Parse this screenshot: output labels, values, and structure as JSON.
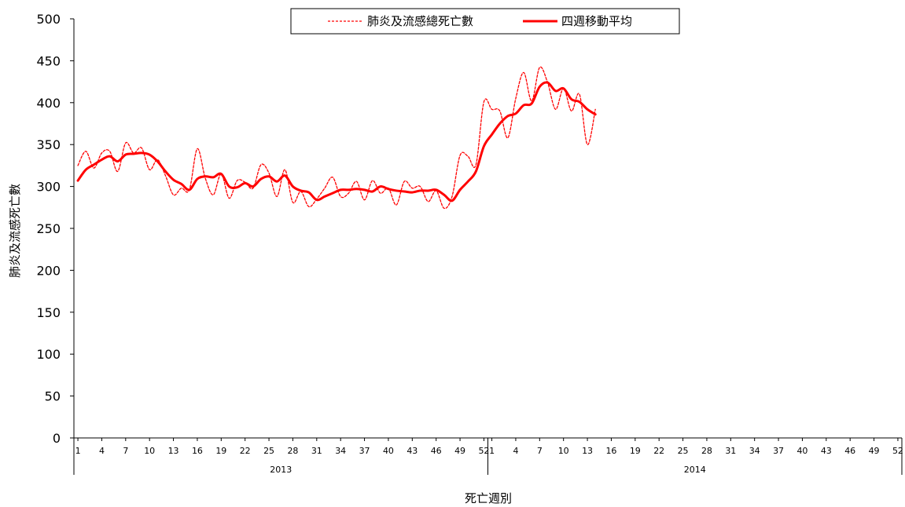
{
  "chart_data": {
    "type": "line",
    "ylabel": "肺炎及流感死亡數",
    "xlabel": "死亡週別",
    "ylim": [
      0,
      500
    ],
    "y_ticks": [
      0,
      50,
      100,
      150,
      200,
      250,
      300,
      350,
      400,
      450,
      500
    ],
    "grid": false,
    "legend_position": "top",
    "x_ticks": [
      1,
      4,
      7,
      10,
      13,
      16,
      19,
      22,
      25,
      28,
      31,
      34,
      37,
      40,
      43,
      46,
      49,
      52
    ],
    "years": [
      "2013",
      "2014"
    ],
    "weeks_per_year": 52,
    "series": [
      {
        "name": "肺炎及流感總死亡數",
        "style": "dashed",
        "color": "#ff0000",
        "year_2013": [
          325,
          342,
          322,
          340,
          342,
          318,
          352,
          340,
          346,
          320,
          332,
          313,
          290,
          298,
          296,
          345,
          310,
          290,
          315,
          286,
          307,
          305,
          298,
          326,
          316,
          288,
          320,
          281,
          294,
          276,
          285,
          298,
          311,
          288,
          292,
          306,
          284,
          307,
          292,
          298,
          278,
          306,
          298,
          300,
          282,
          295,
          274,
          288,
          337,
          336,
          326,
          401
        ],
        "year_2014": [
          392,
          390,
          358,
          405,
          436,
          402,
          442,
          424,
          392,
          417,
          390,
          410,
          350,
          392
        ]
      },
      {
        "name": "四週移動平均",
        "style": "solid",
        "color": "#ff0000",
        "year_2013": [
          307,
          320,
          326,
          332,
          336,
          330,
          338,
          339,
          340,
          338,
          330,
          318,
          308,
          303,
          296,
          309,
          312,
          311,
          315,
          300,
          299,
          304,
          300,
          309,
          312,
          306,
          313,
          300,
          295,
          293,
          284,
          288,
          292,
          296,
          296,
          297,
          296,
          294,
          300,
          297,
          295,
          294,
          293,
          295,
          295,
          296,
          290,
          283,
          296,
          306,
          318,
          348
        ],
        "year_2014": [
          362,
          375,
          384,
          387,
          397,
          399,
          419,
          424,
          414,
          417,
          404,
          401,
          392,
          386
        ]
      }
    ]
  }
}
